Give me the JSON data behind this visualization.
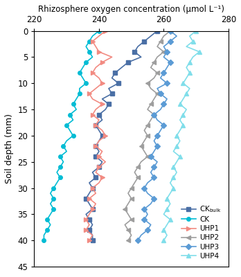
{
  "title": "Rhizosphere oxygen concentration (μmol L⁻¹)",
  "ylabel": "Soil depth (mm)",
  "xlim": [
    220,
    280
  ],
  "ylim": [
    45,
    0
  ],
  "xticks": [
    220,
    240,
    260,
    280
  ],
  "yticks": [
    0,
    5,
    10,
    15,
    20,
    25,
    30,
    35,
    40,
    45
  ],
  "series": {
    "CK_bulk": {
      "color": "#4a6fa5",
      "marker": "s",
      "markersize": 4,
      "label": "CK$_{bulk}$",
      "depth": [
        0,
        1,
        2,
        3,
        4,
        5,
        6,
        7,
        8,
        9,
        10,
        11,
        12,
        13,
        14,
        15,
        16,
        17,
        18,
        19,
        20,
        21,
        22,
        23,
        24,
        25,
        26,
        27,
        28,
        29,
        30,
        31,
        32,
        33,
        34,
        35,
        36,
        37,
        38,
        39,
        40
      ],
      "x": [
        258,
        256,
        254,
        252,
        251,
        253,
        249,
        247,
        245,
        244,
        246,
        243,
        244,
        241,
        243,
        242,
        240,
        241,
        239,
        240,
        241,
        240,
        239,
        240,
        239,
        241,
        240,
        238,
        239,
        237,
        238,
        237,
        236,
        237,
        238,
        236,
        237,
        238,
        237,
        238,
        238
      ]
    },
    "CK": {
      "color": "#00bcd4",
      "marker": "o",
      "markersize": 4,
      "label": "CK",
      "depth": [
        0,
        1,
        2,
        3,
        4,
        5,
        6,
        7,
        8,
        9,
        10,
        11,
        12,
        13,
        14,
        15,
        16,
        17,
        18,
        19,
        20,
        21,
        22,
        23,
        24,
        25,
        26,
        27,
        28,
        29,
        30,
        31,
        32,
        33,
        34,
        35,
        36,
        37,
        38,
        39,
        40
      ],
      "x": [
        240,
        238,
        237,
        236,
        237,
        238,
        236,
        235,
        234,
        235,
        236,
        234,
        234,
        233,
        232,
        233,
        231,
        232,
        230,
        231,
        232,
        230,
        229,
        230,
        228,
        229,
        228,
        227,
        228,
        227,
        226,
        225,
        226,
        225,
        226,
        225,
        224,
        225,
        224,
        223,
        223
      ]
    },
    "UHP1": {
      "color": "#f28b82",
      "marker": ">",
      "markersize": 4,
      "label": "UHP1",
      "depth": [
        0,
        1,
        2,
        3,
        4,
        5,
        6,
        7,
        8,
        9,
        10,
        11,
        12,
        13,
        14,
        15,
        16,
        17,
        18,
        19,
        20,
        21,
        22,
        23,
        24,
        25,
        26,
        27,
        28,
        29,
        30,
        31,
        32,
        33,
        34,
        35,
        36,
        37,
        38,
        39,
        40
      ],
      "x": [
        242,
        240,
        238,
        239,
        240,
        244,
        241,
        239,
        238,
        240,
        241,
        239,
        237,
        238,
        241,
        239,
        238,
        240,
        239,
        241,
        242,
        240,
        239,
        241,
        240,
        242,
        240,
        239,
        241,
        240,
        238,
        239,
        237,
        239,
        238,
        237,
        236,
        237,
        236,
        238,
        237
      ]
    },
    "UHP2": {
      "color": "#9e9e9e",
      "marker": "<",
      "markersize": 4,
      "label": "UHP2",
      "depth": [
        0,
        1,
        2,
        3,
        4,
        5,
        6,
        7,
        8,
        9,
        10,
        11,
        12,
        13,
        14,
        15,
        16,
        17,
        18,
        19,
        20,
        21,
        22,
        23,
        24,
        25,
        26,
        27,
        28,
        29,
        30,
        31,
        32,
        33,
        34,
        35,
        36,
        37,
        38,
        39,
        40
      ],
      "x": [
        262,
        260,
        259,
        258,
        260,
        258,
        257,
        256,
        258,
        257,
        255,
        256,
        258,
        257,
        256,
        255,
        257,
        256,
        255,
        254,
        255,
        254,
        253,
        254,
        255,
        253,
        252,
        251,
        252,
        251,
        250,
        249,
        250,
        249,
        248,
        249,
        250,
        248,
        249,
        250,
        249
      ]
    },
    "UHP3": {
      "color": "#5b9bd5",
      "marker": "D",
      "markersize": 4,
      "label": "UHP3",
      "depth": [
        0,
        1,
        2,
        3,
        4,
        5,
        6,
        7,
        8,
        9,
        10,
        11,
        12,
        13,
        14,
        15,
        16,
        17,
        18,
        19,
        20,
        21,
        22,
        23,
        24,
        25,
        26,
        27,
        28,
        29,
        30,
        31,
        32,
        33,
        34,
        35,
        36,
        37,
        38,
        39,
        40
      ],
      "x": [
        262,
        264,
        262,
        260,
        261,
        260,
        262,
        261,
        260,
        259,
        261,
        258,
        259,
        261,
        260,
        259,
        257,
        258,
        260,
        259,
        258,
        257,
        258,
        257,
        256,
        258,
        257,
        256,
        257,
        255,
        254,
        255,
        257,
        256,
        254,
        255,
        254,
        256,
        255,
        253,
        252
      ]
    },
    "UHP4": {
      "color": "#80deea",
      "marker": "^",
      "markersize": 4,
      "label": "UHP4",
      "depth": [
        0,
        1,
        2,
        3,
        4,
        5,
        6,
        7,
        8,
        9,
        10,
        11,
        12,
        13,
        14,
        15,
        16,
        17,
        18,
        19,
        20,
        21,
        22,
        23,
        24,
        25,
        26,
        27,
        28,
        29,
        30,
        31,
        32,
        33,
        34,
        35,
        36,
        37,
        38,
        39,
        40
      ],
      "x": [
        270,
        268,
        269,
        267,
        271,
        269,
        268,
        267,
        268,
        267,
        266,
        268,
        267,
        266,
        265,
        267,
        266,
        265,
        266,
        265,
        264,
        265,
        264,
        263,
        265,
        264,
        263,
        264,
        263,
        262,
        263,
        262,
        261,
        262,
        261,
        260,
        262,
        261,
        260,
        261,
        260
      ]
    }
  }
}
